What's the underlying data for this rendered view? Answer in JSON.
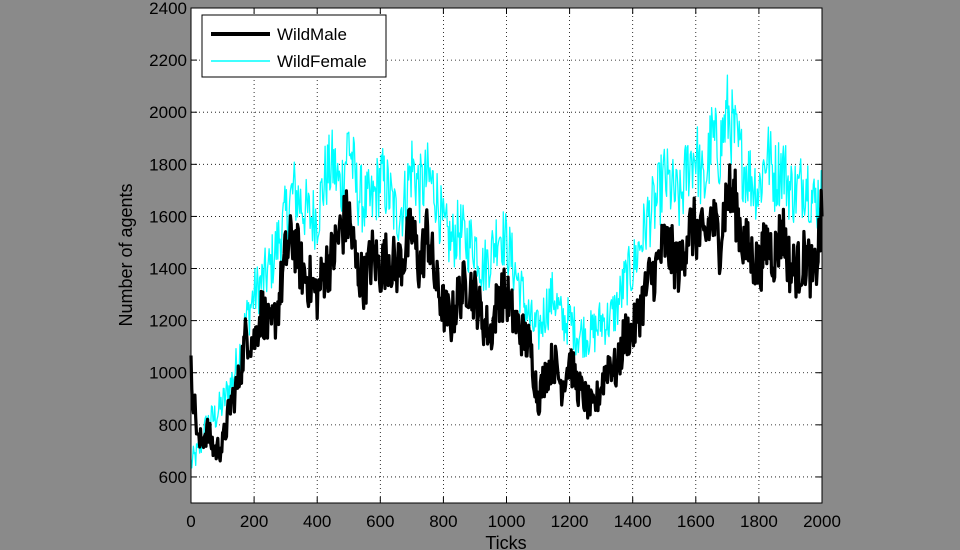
{
  "chart_data": {
    "type": "line",
    "title": "",
    "xlabel": "Ticks",
    "ylabel": "Number of agents",
    "xlim": [
      0,
      2000
    ],
    "ylim": [
      500,
      2400
    ],
    "xticks": [
      0,
      200,
      400,
      600,
      800,
      1000,
      1200,
      1400,
      1600,
      1800,
      2000
    ],
    "yticks": [
      600,
      800,
      1000,
      1200,
      1400,
      1600,
      1800,
      2000,
      2200,
      2400
    ],
    "grid": true,
    "legend_position": "top-left",
    "x": [
      0,
      25,
      50,
      75,
      100,
      125,
      150,
      175,
      200,
      225,
      250,
      275,
      300,
      325,
      350,
      375,
      400,
      425,
      450,
      475,
      500,
      525,
      550,
      575,
      600,
      625,
      650,
      675,
      700,
      725,
      750,
      775,
      800,
      825,
      850,
      875,
      900,
      925,
      950,
      975,
      1000,
      1025,
      1050,
      1075,
      1100,
      1125,
      1150,
      1175,
      1200,
      1225,
      1250,
      1275,
      1300,
      1325,
      1350,
      1375,
      1400,
      1425,
      1450,
      1475,
      1500,
      1525,
      1550,
      1575,
      1600,
      1625,
      1650,
      1675,
      1700,
      1725,
      1750,
      1775,
      1800,
      1825,
      1850,
      1875,
      1900,
      1925,
      1950,
      1975,
      2000
    ],
    "series": [
      {
        "name": "WildMale",
        "color": "#000000",
        "values": [
          1000,
          720,
          780,
          700,
          720,
          880,
          960,
          1150,
          1120,
          1250,
          1150,
          1250,
          1450,
          1520,
          1400,
          1350,
          1300,
          1400,
          1450,
          1550,
          1600,
          1400,
          1350,
          1450,
          1400,
          1450,
          1400,
          1450,
          1550,
          1400,
          1550,
          1350,
          1250,
          1200,
          1300,
          1350,
          1300,
          1200,
          1150,
          1300,
          1300,
          1200,
          1150,
          1100,
          900,
          1000,
          1050,
          950,
          1050,
          950,
          900,
          850,
          950,
          1050,
          1000,
          1150,
          1150,
          1250,
          1350,
          1400,
          1500,
          1450,
          1400,
          1550,
          1550,
          1500,
          1600,
          1500,
          1700,
          1650,
          1500,
          1450,
          1400,
          1500,
          1450,
          1550,
          1400,
          1400,
          1450,
          1350,
          1600
        ]
      },
      {
        "name": "WildFemale",
        "color": "#00ffff",
        "values": [
          650,
          700,
          800,
          830,
          880,
          950,
          1050,
          1200,
          1300,
          1350,
          1400,
          1500,
          1600,
          1700,
          1650,
          1600,
          1600,
          1750,
          1800,
          1700,
          1900,
          1700,
          1650,
          1650,
          1750,
          1700,
          1600,
          1650,
          1800,
          1700,
          1750,
          1700,
          1550,
          1500,
          1550,
          1500,
          1500,
          1400,
          1450,
          1550,
          1500,
          1400,
          1300,
          1200,
          1150,
          1250,
          1300,
          1200,
          1200,
          1150,
          1150,
          1150,
          1200,
          1200,
          1250,
          1350,
          1400,
          1500,
          1600,
          1650,
          1750,
          1700,
          1650,
          1800,
          1850,
          1700,
          1900,
          1850,
          2000,
          1900,
          1800,
          1750,
          1700,
          1850,
          1750,
          1800,
          1700,
          1700,
          1750,
          1650,
          1700
        ]
      }
    ]
  }
}
